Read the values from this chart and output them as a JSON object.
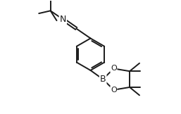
{
  "bg_color": "#ffffff",
  "line_color": "#1a1a1a",
  "line_width": 1.4,
  "font_size": 8,
  "fig_width": 2.57,
  "fig_height": 1.62,
  "dpi": 100,
  "xlim": [
    0,
    10
  ],
  "ylim": [
    0,
    6.3
  ]
}
